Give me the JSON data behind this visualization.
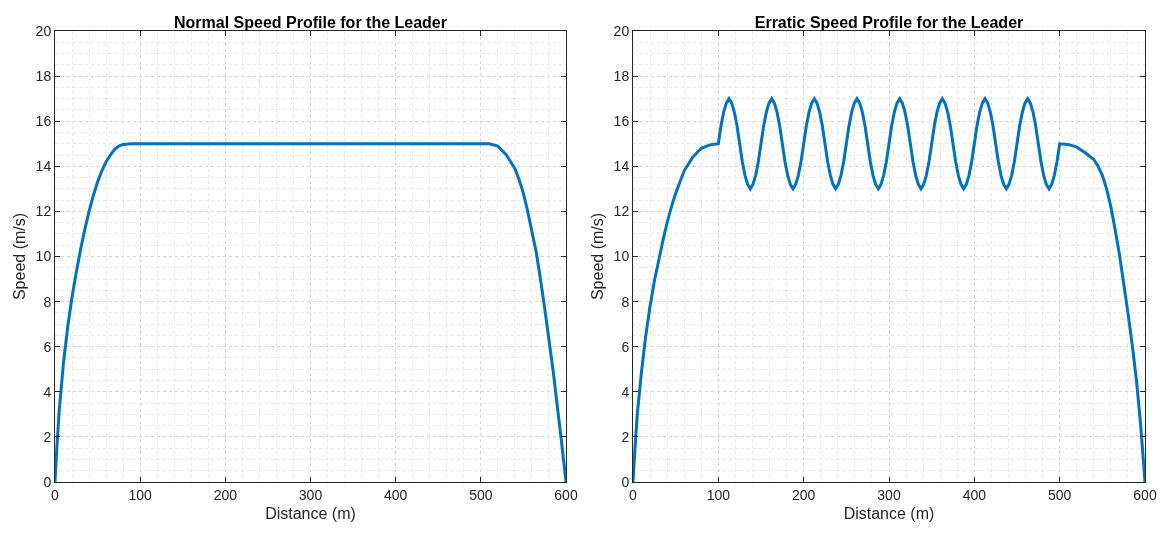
{
  "chart_data": [
    {
      "type": "line",
      "title": "Normal Speed Profile for the Leader",
      "xlabel": "Distance (m)",
      "ylabel": "Speed (m/s)",
      "xlim": [
        0,
        600
      ],
      "xticks": [
        0,
        100,
        200,
        300,
        400,
        500,
        600
      ],
      "ylim": [
        0,
        20
      ],
      "yticks": [
        0,
        2,
        4,
        6,
        8,
        10,
        12,
        14,
        16,
        18,
        20
      ],
      "grid": true,
      "line_style": "solid",
      "x": [
        0,
        2,
        5,
        10,
        15,
        20,
        25,
        30,
        35,
        40,
        45,
        50,
        55,
        60,
        65,
        70,
        75,
        80,
        90,
        300,
        510,
        520,
        530,
        540,
        545,
        550,
        555,
        560,
        565,
        570,
        575,
        580,
        585,
        590,
        595,
        600
      ],
      "series": [
        {
          "color": "#0072bd",
          "values": [
            0,
            1.4,
            3.2,
            5.3,
            6.9,
            8.2,
            9.3,
            10.3,
            11.2,
            12.0,
            12.7,
            13.3,
            13.8,
            14.2,
            14.5,
            14.75,
            14.9,
            14.97,
            15,
            15,
            15,
            14.9,
            14.5,
            13.9,
            13.4,
            12.8,
            12.0,
            11.1,
            10.2,
            9.0,
            7.7,
            6.3,
            4.9,
            3.3,
            1.7,
            0
          ]
        }
      ]
    },
    {
      "type": "line",
      "title": "Erratic Speed Profile for the Leader",
      "xlabel": "Distance (m)",
      "ylabel": "Speed (m/s)",
      "xlim": [
        0,
        600
      ],
      "xticks": [
        0,
        100,
        200,
        300,
        400,
        500,
        600
      ],
      "ylim": [
        0,
        20
      ],
      "yticks": [
        0,
        2,
        4,
        6,
        8,
        10,
        12,
        14,
        16,
        18,
        20
      ],
      "grid": true,
      "line_style": "solid",
      "x": [
        0,
        2,
        5,
        10,
        15,
        20,
        25,
        30,
        35,
        40,
        45,
        50,
        55,
        60,
        65,
        70,
        75,
        80,
        90,
        100,
        103.125,
        106.25,
        109.375,
        112.5,
        115.625,
        118.75,
        121.875,
        125,
        128.125,
        131.25,
        134.375,
        137.5,
        140.625,
        143.75,
        146.875,
        150,
        153.125,
        156.25,
        159.375,
        162.5,
        165.625,
        168.75,
        171.875,
        175,
        178.125,
        181.25,
        184.375,
        187.5,
        190.625,
        193.75,
        196.875,
        200,
        203.125,
        206.25,
        209.375,
        212.5,
        215.625,
        218.75,
        221.875,
        225,
        228.125,
        231.25,
        234.375,
        237.5,
        240.625,
        243.75,
        246.875,
        250,
        253.125,
        256.25,
        259.375,
        262.5,
        265.625,
        268.75,
        271.875,
        275,
        278.125,
        281.25,
        284.375,
        287.5,
        290.625,
        293.75,
        296.875,
        300,
        303.125,
        306.25,
        309.375,
        312.5,
        315.625,
        318.75,
        321.875,
        325,
        328.125,
        331.25,
        334.375,
        337.5,
        340.625,
        343.75,
        346.875,
        350,
        353.125,
        356.25,
        359.375,
        362.5,
        365.625,
        368.75,
        371.875,
        375,
        378.125,
        381.25,
        384.375,
        387.5,
        390.625,
        393.75,
        396.875,
        400,
        403.125,
        406.25,
        409.375,
        412.5,
        415.625,
        418.75,
        421.875,
        425,
        428.125,
        431.25,
        434.375,
        437.5,
        440.625,
        443.75,
        446.875,
        450,
        453.125,
        456.25,
        459.375,
        462.5,
        465.625,
        468.75,
        471.875,
        475,
        478.125,
        481.25,
        484.375,
        487.5,
        490.625,
        493.75,
        496.875,
        500,
        510,
        520,
        530,
        540,
        545,
        550,
        555,
        560,
        565,
        570,
        575,
        580,
        585,
        590,
        595,
        600
      ],
      "series": [
        {
          "color": "#0072bd",
          "values": [
            0,
            1.3,
            3.0,
            4.9,
            6.5,
            7.8,
            8.9,
            9.8,
            10.7,
            11.5,
            12.2,
            12.8,
            13.3,
            13.8,
            14.1,
            14.4,
            14.6,
            14.8,
            14.95,
            15,
            15.8,
            16.4,
            16.8,
            17,
            16.8,
            16.4,
            15.8,
            15,
            14.2,
            13.6,
            13.2,
            13,
            13.2,
            13.6,
            14.2,
            15,
            15.8,
            16.4,
            16.8,
            17,
            16.8,
            16.4,
            15.8,
            15,
            14.2,
            13.6,
            13.2,
            13,
            13.2,
            13.6,
            14.2,
            15,
            15.8,
            16.4,
            16.8,
            17,
            16.8,
            16.4,
            15.8,
            15,
            14.2,
            13.6,
            13.2,
            13,
            13.2,
            13.6,
            14.2,
            15,
            15.8,
            16.4,
            16.8,
            17,
            16.8,
            16.4,
            15.8,
            15,
            14.2,
            13.6,
            13.2,
            13,
            13.2,
            13.6,
            14.2,
            15,
            15.8,
            16.4,
            16.8,
            17,
            16.8,
            16.4,
            15.8,
            15,
            14.2,
            13.6,
            13.2,
            13,
            13.2,
            13.6,
            14.2,
            15,
            15.8,
            16.4,
            16.8,
            17,
            16.8,
            16.4,
            15.8,
            15,
            14.2,
            13.6,
            13.2,
            13,
            13.2,
            13.6,
            14.2,
            15,
            15.8,
            16.4,
            16.8,
            17,
            16.8,
            16.4,
            15.8,
            15,
            14.2,
            13.6,
            13.2,
            13,
            13.2,
            13.6,
            14.2,
            15,
            15.8,
            16.4,
            16.8,
            17,
            16.8,
            16.4,
            15.8,
            15,
            14.2,
            13.6,
            13.2,
            13,
            13.2,
            13.6,
            14.2,
            15,
            14.97,
            14.85,
            14.6,
            14.3,
            14.0,
            13.6,
            13.0,
            12.2,
            11.2,
            10.1,
            8.8,
            7.5,
            6.1,
            4.5,
            2.5,
            0
          ]
        }
      ]
    }
  ]
}
